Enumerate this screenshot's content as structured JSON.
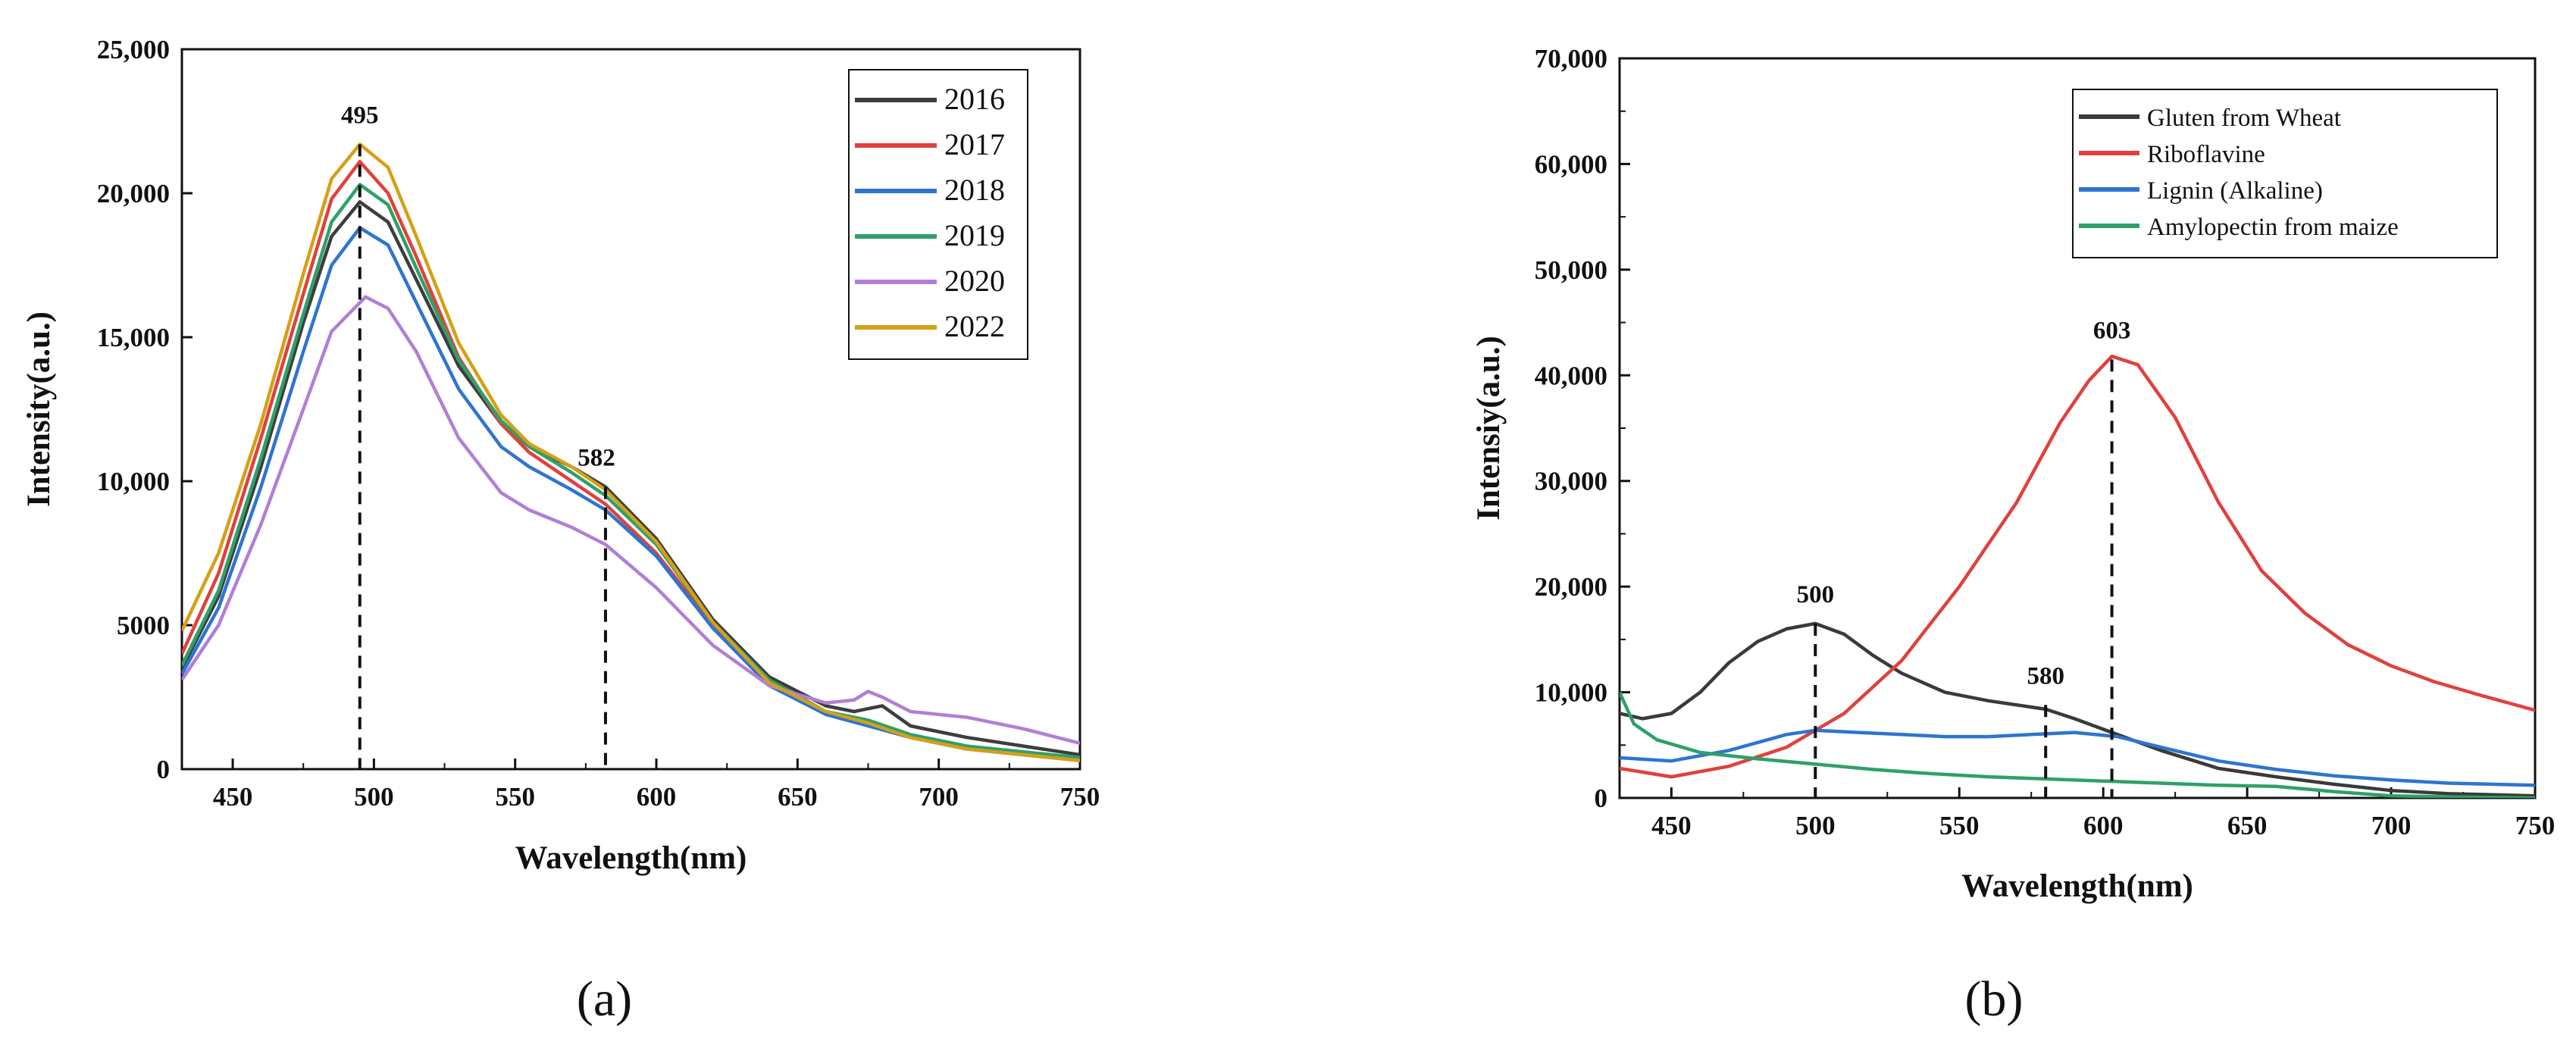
{
  "chart_data": [
    {
      "type": "line",
      "panel_label": "(a)",
      "title": "",
      "xlabel": "Wavelength(nm)",
      "ylabel": "Intensity(a.u.)",
      "xlim": [
        432,
        750
      ],
      "ylim": [
        0,
        25000
      ],
      "xticks": [
        450,
        500,
        550,
        600,
        650,
        700,
        750
      ],
      "yticks": [
        0,
        5000,
        10000,
        15000,
        20000,
        25000
      ],
      "xtick_labels": [
        "450",
        "500",
        "550",
        "600",
        "650",
        "700",
        "750"
      ],
      "ytick_labels": [
        "0",
        "5000",
        "10,000",
        "15,000",
        "20,000",
        "25,000"
      ],
      "legend_position": "top-right",
      "annotations": [
        {
          "text": "495",
          "x": 495,
          "y": 21700
        },
        {
          "text": "582",
          "x": 582,
          "y": 9800
        }
      ],
      "series": [
        {
          "name": "2016",
          "color": "#3d3d3d",
          "points": [
            [
              432,
              3500
            ],
            [
              445,
              6000
            ],
            [
              460,
              10500
            ],
            [
              475,
              15500
            ],
            [
              485,
              18500
            ],
            [
              495,
              19700
            ],
            [
              505,
              19000
            ],
            [
              515,
              17000
            ],
            [
              530,
              14000
            ],
            [
              545,
              12000
            ],
            [
              555,
              11200
            ],
            [
              570,
              10500
            ],
            [
              582,
              9800
            ],
            [
              600,
              8000
            ],
            [
              620,
              5200
            ],
            [
              640,
              3200
            ],
            [
              660,
              2200
            ],
            [
              670,
              2000
            ],
            [
              680,
              2200
            ],
            [
              690,
              1500
            ],
            [
              710,
              1100
            ],
            [
              730,
              800
            ],
            [
              750,
              500
            ]
          ]
        },
        {
          "name": "2017",
          "color": "#e0413c",
          "points": [
            [
              432,
              4000
            ],
            [
              445,
              6800
            ],
            [
              460,
              11500
            ],
            [
              475,
              16500
            ],
            [
              485,
              19800
            ],
            [
              495,
              21100
            ],
            [
              505,
              20000
            ],
            [
              515,
              17800
            ],
            [
              530,
              14300
            ],
            [
              545,
              12000
            ],
            [
              555,
              11000
            ],
            [
              570,
              10000
            ],
            [
              582,
              9200
            ],
            [
              600,
              7500
            ],
            [
              620,
              5000
            ],
            [
              640,
              3000
            ],
            [
              660,
              2000
            ],
            [
              675,
              1600
            ],
            [
              690,
              1100
            ],
            [
              710,
              700
            ],
            [
              730,
              500
            ],
            [
              750,
              300
            ]
          ]
        },
        {
          "name": "2018",
          "color": "#2f74d0",
          "points": [
            [
              432,
              3300
            ],
            [
              445,
              5600
            ],
            [
              460,
              9800
            ],
            [
              475,
              14500
            ],
            [
              485,
              17500
            ],
            [
              495,
              18800
            ],
            [
              505,
              18200
            ],
            [
              515,
              16200
            ],
            [
              530,
              13200
            ],
            [
              545,
              11200
            ],
            [
              555,
              10500
            ],
            [
              570,
              9700
            ],
            [
              582,
              9000
            ],
            [
              600,
              7400
            ],
            [
              620,
              4900
            ],
            [
              640,
              2900
            ],
            [
              660,
              1900
            ],
            [
              675,
              1500
            ],
            [
              690,
              1100
            ],
            [
              710,
              700
            ],
            [
              730,
              500
            ],
            [
              750,
              300
            ]
          ]
        },
        {
          "name": "2019",
          "color": "#2fa06a",
          "points": [
            [
              432,
              3600
            ],
            [
              445,
              6200
            ],
            [
              460,
              10800
            ],
            [
              475,
              15800
            ],
            [
              485,
              19000
            ],
            [
              495,
              20300
            ],
            [
              505,
              19600
            ],
            [
              515,
              17400
            ],
            [
              530,
              14200
            ],
            [
              545,
              12100
            ],
            [
              555,
              11200
            ],
            [
              570,
              10300
            ],
            [
              582,
              9500
            ],
            [
              600,
              7800
            ],
            [
              620,
              5100
            ],
            [
              640,
              3100
            ],
            [
              660,
              2000
            ],
            [
              675,
              1700
            ],
            [
              690,
              1200
            ],
            [
              710,
              800
            ],
            [
              730,
              600
            ],
            [
              750,
              400
            ]
          ]
        },
        {
          "name": "2020",
          "color": "#b07fd6",
          "points": [
            [
              432,
              3100
            ],
            [
              445,
              5000
            ],
            [
              460,
              8500
            ],
            [
              475,
              12500
            ],
            [
              485,
              15200
            ],
            [
              497,
              16400
            ],
            [
              505,
              16000
            ],
            [
              515,
              14500
            ],
            [
              530,
              11500
            ],
            [
              545,
              9600
            ],
            [
              555,
              9000
            ],
            [
              570,
              8400
            ],
            [
              582,
              7800
            ],
            [
              600,
              6300
            ],
            [
              620,
              4300
            ],
            [
              640,
              2900
            ],
            [
              660,
              2300
            ],
            [
              670,
              2400
            ],
            [
              675,
              2700
            ],
            [
              680,
              2500
            ],
            [
              690,
              2000
            ],
            [
              710,
              1800
            ],
            [
              730,
              1400
            ],
            [
              750,
              900
            ]
          ]
        },
        {
          "name": "2022",
          "color": "#d4a017",
          "points": [
            [
              432,
              4800
            ],
            [
              445,
              7500
            ],
            [
              460,
              12000
            ],
            [
              475,
              17200
            ],
            [
              485,
              20500
            ],
            [
              495,
              21700
            ],
            [
              505,
              20900
            ],
            [
              515,
              18500
            ],
            [
              530,
              14800
            ],
            [
              545,
              12300
            ],
            [
              555,
              11300
            ],
            [
              570,
              10500
            ],
            [
              582,
              9700
            ],
            [
              600,
              7900
            ],
            [
              620,
              5100
            ],
            [
              640,
              3000
            ],
            [
              660,
              2000
            ],
            [
              675,
              1600
            ],
            [
              690,
              1100
            ],
            [
              710,
              700
            ],
            [
              730,
              500
            ],
            [
              750,
              300
            ]
          ]
        }
      ]
    },
    {
      "type": "line",
      "panel_label": "(b)",
      "title": "",
      "xlabel": "Wavelength(nm)",
      "ylabel": "Intensiy(a.u.)",
      "xlim": [
        432,
        750
      ],
      "ylim": [
        0,
        70000
      ],
      "xticks": [
        450,
        500,
        550,
        600,
        650,
        700,
        750
      ],
      "yticks": [
        0,
        10000,
        20000,
        30000,
        40000,
        50000,
        60000,
        70000
      ],
      "xtick_labels": [
        "450",
        "500",
        "550",
        "600",
        "650",
        "700",
        "750"
      ],
      "ytick_labels": [
        "0",
        "10,000",
        "20,000",
        "30,000",
        "40,000",
        "50,000",
        "60,000",
        "70,000"
      ],
      "legend_position": "top-right",
      "annotations": [
        {
          "text": "603",
          "x": 603,
          "y": 41500
        },
        {
          "text": "500",
          "x": 500,
          "y": 16500
        },
        {
          "text": "580",
          "x": 580,
          "y": 8800
        }
      ],
      "series": [
        {
          "name": "Gluten from Wheat",
          "color": "#3a3a3a",
          "points": [
            [
              432,
              8000
            ],
            [
              440,
              7500
            ],
            [
              450,
              8000
            ],
            [
              460,
              10000
            ],
            [
              470,
              12800
            ],
            [
              480,
              14800
            ],
            [
              490,
              16000
            ],
            [
              500,
              16500
            ],
            [
              510,
              15500
            ],
            [
              520,
              13500
            ],
            [
              530,
              11800
            ],
            [
              545,
              10000
            ],
            [
              560,
              9200
            ],
            [
              575,
              8600
            ],
            [
              580,
              8400
            ],
            [
              590,
              7500
            ],
            [
              600,
              6500
            ],
            [
              620,
              4500
            ],
            [
              640,
              2800
            ],
            [
              660,
              2000
            ],
            [
              680,
              1300
            ],
            [
              700,
              700
            ],
            [
              720,
              400
            ],
            [
              750,
              200
            ]
          ]
        },
        {
          "name": "Riboflavine",
          "color": "#e0413c",
          "points": [
            [
              432,
              2800
            ],
            [
              450,
              2000
            ],
            [
              470,
              3000
            ],
            [
              490,
              4800
            ],
            [
              510,
              8000
            ],
            [
              530,
              13000
            ],
            [
              550,
              20000
            ],
            [
              570,
              28000
            ],
            [
              585,
              35500
            ],
            [
              595,
              39500
            ],
            [
              603,
              41800
            ],
            [
              612,
              41000
            ],
            [
              625,
              36000
            ],
            [
              640,
              28000
            ],
            [
              655,
              21500
            ],
            [
              670,
              17500
            ],
            [
              685,
              14500
            ],
            [
              700,
              12500
            ],
            [
              715,
              11000
            ],
            [
              730,
              9800
            ],
            [
              750,
              8300
            ]
          ]
        },
        {
          "name": "Lignin (Alkaline)",
          "color": "#2f74d0",
          "points": [
            [
              432,
              3800
            ],
            [
              450,
              3500
            ],
            [
              470,
              4500
            ],
            [
              490,
              6000
            ],
            [
              500,
              6400
            ],
            [
              515,
              6200
            ],
            [
              530,
              6000
            ],
            [
              545,
              5800
            ],
            [
              560,
              5800
            ],
            [
              575,
              6000
            ],
            [
              590,
              6200
            ],
            [
              605,
              5800
            ],
            [
              620,
              4800
            ],
            [
              640,
              3500
            ],
            [
              660,
              2700
            ],
            [
              680,
              2100
            ],
            [
              700,
              1700
            ],
            [
              720,
              1400
            ],
            [
              750,
              1200
            ]
          ]
        },
        {
          "name": "Amylopectin from maize",
          "color": "#2fa06a",
          "points": [
            [
              432,
              10000
            ],
            [
              437,
              7000
            ],
            [
              445,
              5500
            ],
            [
              460,
              4300
            ],
            [
              480,
              3700
            ],
            [
              500,
              3200
            ],
            [
              520,
              2700
            ],
            [
              540,
              2300
            ],
            [
              560,
              2000
            ],
            [
              580,
              1800
            ],
            [
              600,
              1600
            ],
            [
              620,
              1400
            ],
            [
              640,
              1200
            ],
            [
              660,
              1100
            ],
            [
              680,
              600
            ],
            [
              700,
              200
            ],
            [
              720,
              100
            ],
            [
              750,
              0
            ]
          ]
        }
      ]
    }
  ]
}
